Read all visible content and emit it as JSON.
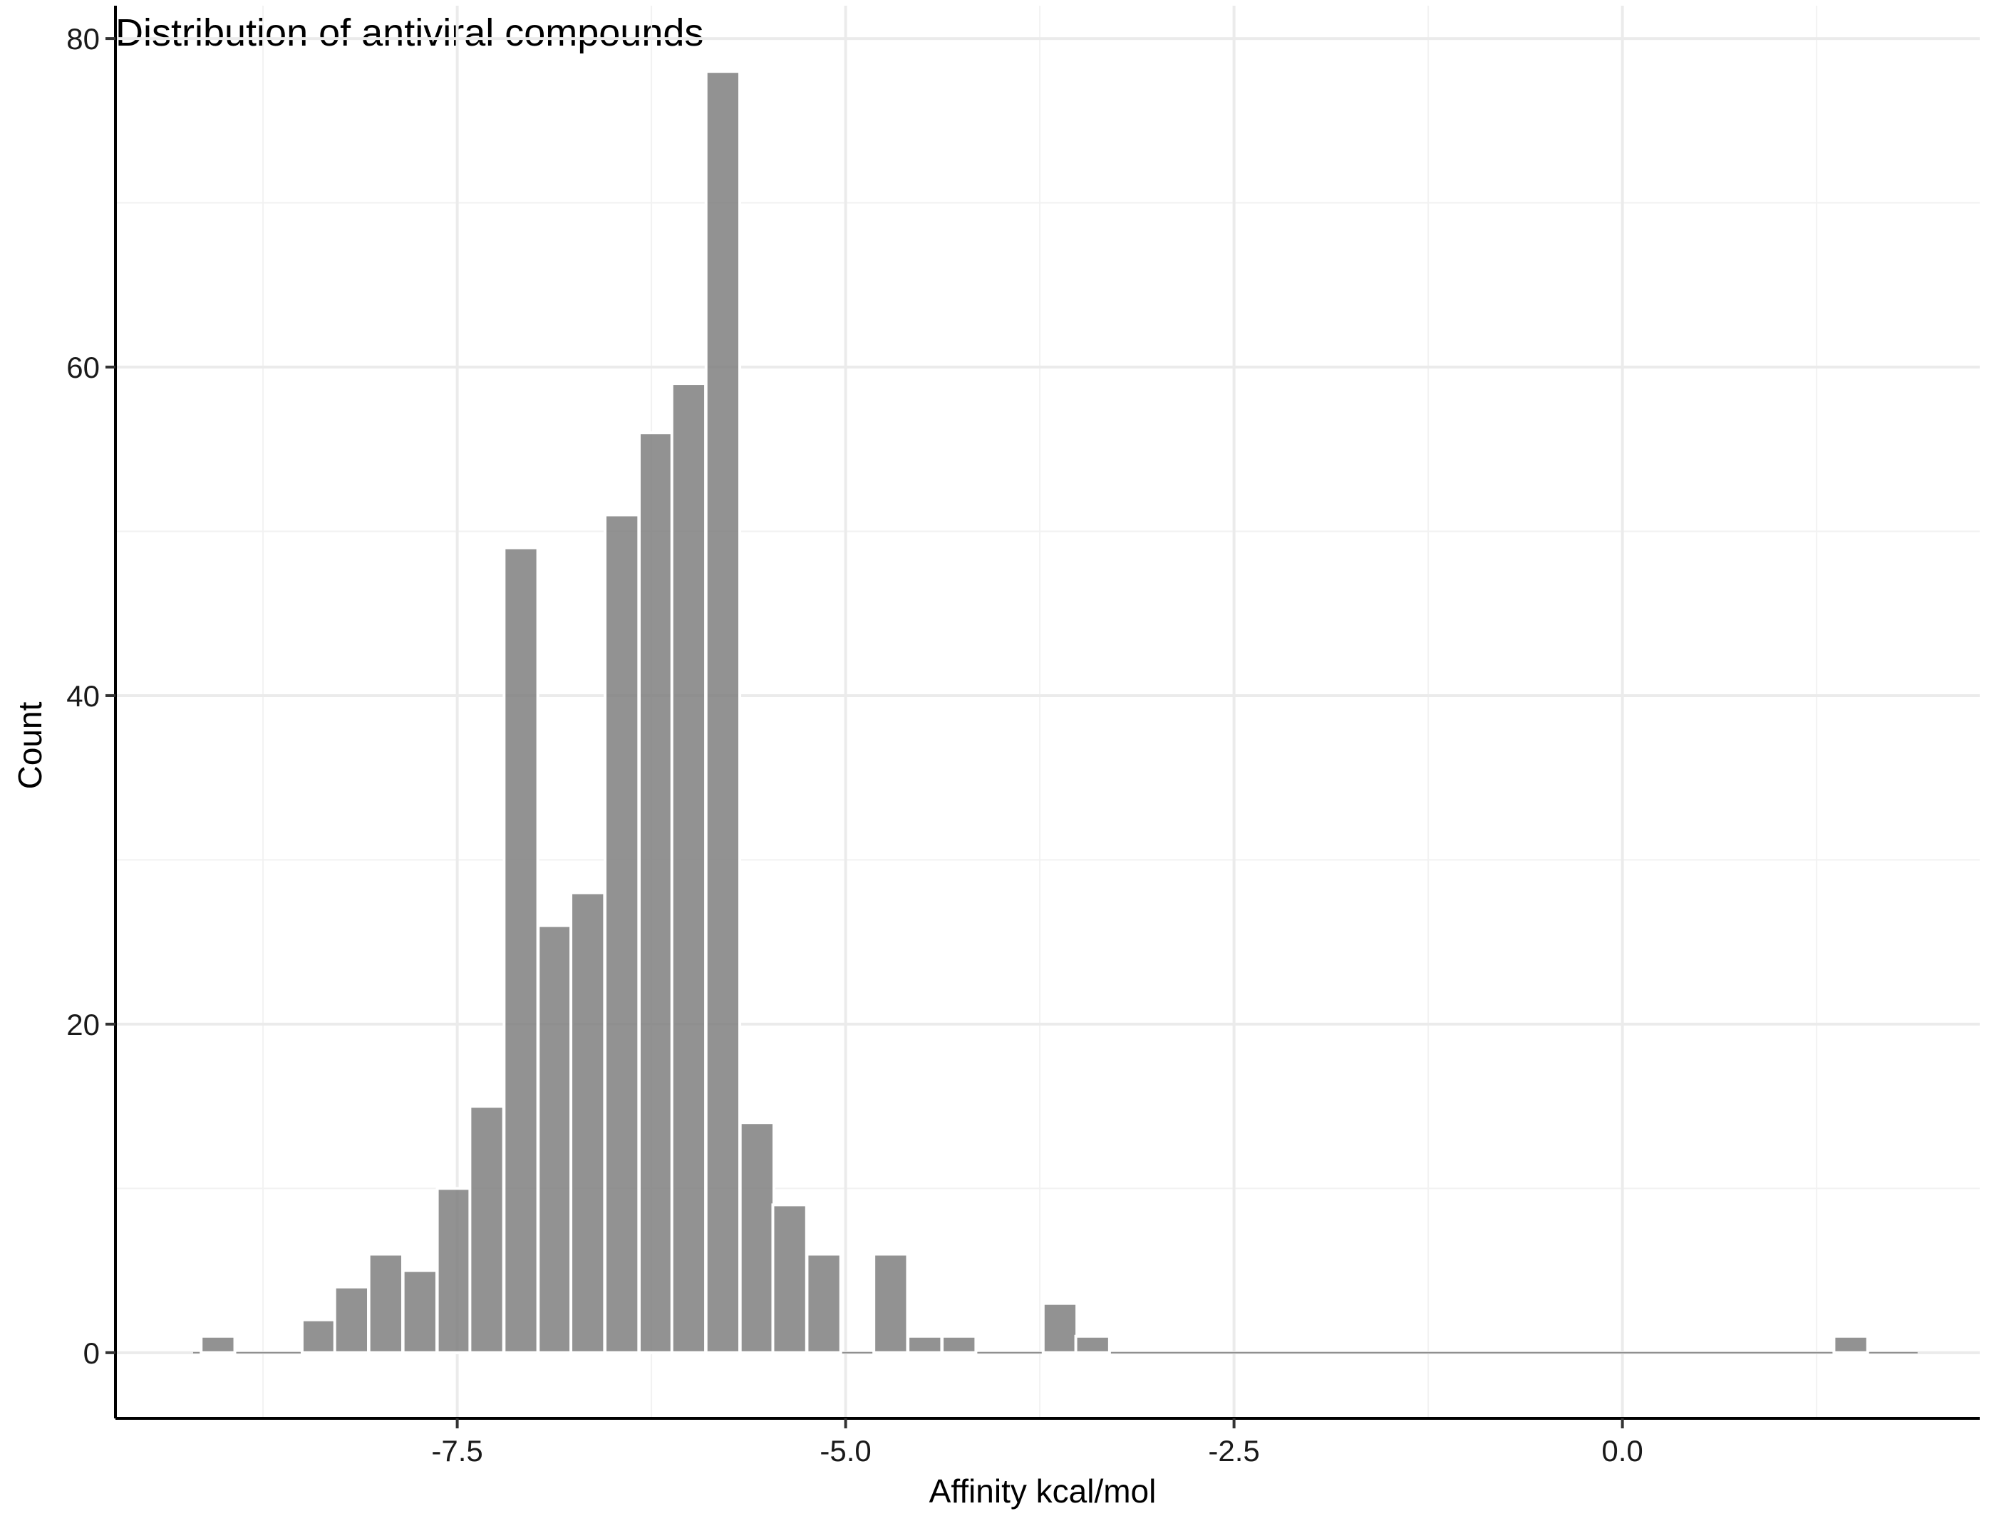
{
  "chart_data": {
    "type": "bar",
    "title": "Distribution of antiviral compounds",
    "xlabel": "Affinity kcal/mol",
    "ylabel": "Count",
    "xlim": [
      -9.7,
      2.3
    ],
    "ylim": [
      -4,
      82
    ],
    "x_ticks": [
      -7.5,
      -5.0,
      -2.5,
      0.0
    ],
    "x_tick_labels": [
      "-7.5",
      "-5.0",
      "-2.5",
      "0.0"
    ],
    "y_ticks": [
      0,
      20,
      40,
      60,
      80
    ],
    "y_tick_labels": [
      "0",
      "20",
      "40",
      "60",
      "80"
    ],
    "binwidth": 0.217,
    "bins": [
      {
        "x": -9.04,
        "count": 1
      },
      {
        "x": -8.83,
        "count": 0
      },
      {
        "x": -8.61,
        "count": 0
      },
      {
        "x": -8.39,
        "count": 2
      },
      {
        "x": -8.18,
        "count": 4
      },
      {
        "x": -7.96,
        "count": 6
      },
      {
        "x": -7.74,
        "count": 5
      },
      {
        "x": -7.52,
        "count": 10
      },
      {
        "x": -7.31,
        "count": 15
      },
      {
        "x": -7.09,
        "count": 49
      },
      {
        "x": -6.87,
        "count": 26
      },
      {
        "x": -6.66,
        "count": 28
      },
      {
        "x": -6.44,
        "count": 51
      },
      {
        "x": -6.22,
        "count": 56
      },
      {
        "x": -6.01,
        "count": 59
      },
      {
        "x": -5.79,
        "count": 78
      },
      {
        "x": -5.57,
        "count": 14
      },
      {
        "x": -5.36,
        "count": 9
      },
      {
        "x": -5.14,
        "count": 6
      },
      {
        "x": -4.92,
        "count": 0
      },
      {
        "x": -4.71,
        "count": 6
      },
      {
        "x": -4.49,
        "count": 1
      },
      {
        "x": -4.27,
        "count": 1
      },
      {
        "x": -4.06,
        "count": 0
      },
      {
        "x": -3.84,
        "count": 0
      },
      {
        "x": -3.62,
        "count": 3
      },
      {
        "x": -3.41,
        "count": 1
      },
      {
        "x": 1.47,
        "count": 1
      }
    ],
    "baseline_range": [
      -9.2,
      1.9
    ],
    "grid": true,
    "legend": "none"
  }
}
